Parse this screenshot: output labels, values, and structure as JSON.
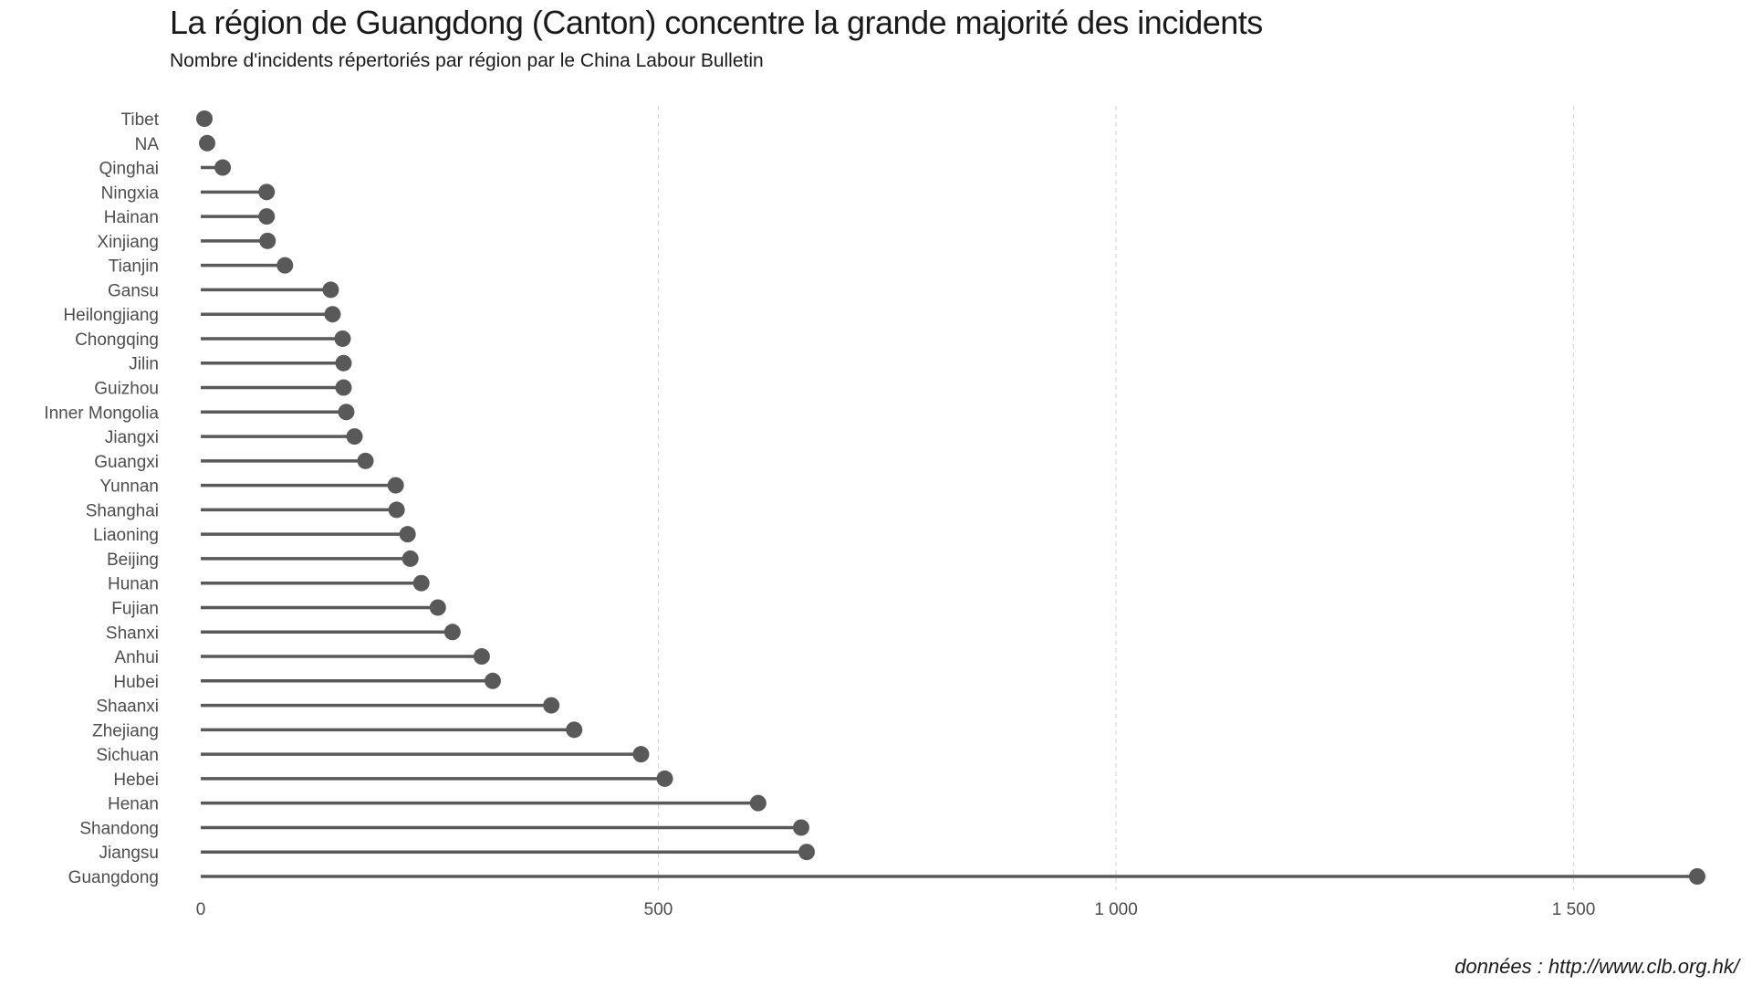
{
  "chart_data": {
    "type": "lollipop",
    "title": "La région de Guangdong (Canton) concentre la grande majorité des incidents",
    "subtitle": "Nombre d'incidents répertoriés par région par le China Labour Bulletin",
    "caption": "données : http://www.clb.org.hk/",
    "xlabel": "",
    "ylabel": "",
    "xlim": [
      0,
      1650
    ],
    "x_ticks": [
      0,
      500,
      1000,
      1500
    ],
    "x_tick_labels": [
      "0",
      "500",
      "1 000",
      "1 500"
    ],
    "grid": "vertical dashed",
    "series_color": "#595959",
    "categories": [
      "Tibet",
      "NA",
      "Qinghai",
      "Ningxia",
      "Hainan",
      "Xinjiang",
      "Tianjin",
      "Gansu",
      "Heilongjiang",
      "Chongqing",
      "Jilin",
      "Guizhou",
      "Inner Mongolia",
      "Jiangxi",
      "Guangxi",
      "Yunnan",
      "Shanghai",
      "Liaoning",
      "Beijing",
      "Hunan",
      "Fujian",
      "Shanxi",
      "Anhui",
      "Hubei",
      "Shaanxi",
      "Zhejiang",
      "Sichuan",
      "Hebei",
      "Henan",
      "Shandong",
      "Jiangsu",
      "Guangdong"
    ],
    "values": [
      4,
      7,
      24,
      72,
      72,
      73,
      92,
      142,
      144,
      155,
      156,
      156,
      159,
      168,
      180,
      213,
      214,
      226,
      229,
      241,
      259,
      275,
      307,
      319,
      383,
      408,
      481,
      507,
      609,
      656,
      662,
      1635
    ]
  }
}
